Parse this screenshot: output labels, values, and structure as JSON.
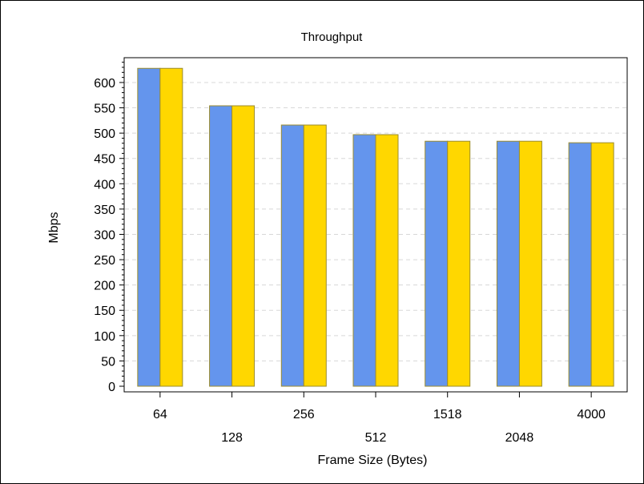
{
  "chart_data": {
    "type": "bar",
    "title": "Throughput",
    "xlabel": "Frame Size (Bytes)",
    "ylabel": "Mbps",
    "categories": [
      "64",
      "128",
      "256",
      "512",
      "1518",
      "2048",
      "4000"
    ],
    "series": [
      {
        "values": [
          628,
          554,
          516,
          497,
          484,
          484,
          481
        ],
        "color": "#6495ED"
      },
      {
        "values": [
          628,
          554,
          516,
          497,
          484,
          484,
          481
        ],
        "color": "#FFD700"
      }
    ],
    "ylim": [
      0,
      640
    ],
    "yticks": [
      0,
      50,
      100,
      150,
      200,
      250,
      300,
      350,
      400,
      450,
      500,
      550,
      600
    ],
    "grid": true,
    "category_label_staggered": true,
    "colors": {
      "bar_outline": "#9b8c2f",
      "grid": "#d8d8d8",
      "axis": "#000000"
    }
  }
}
